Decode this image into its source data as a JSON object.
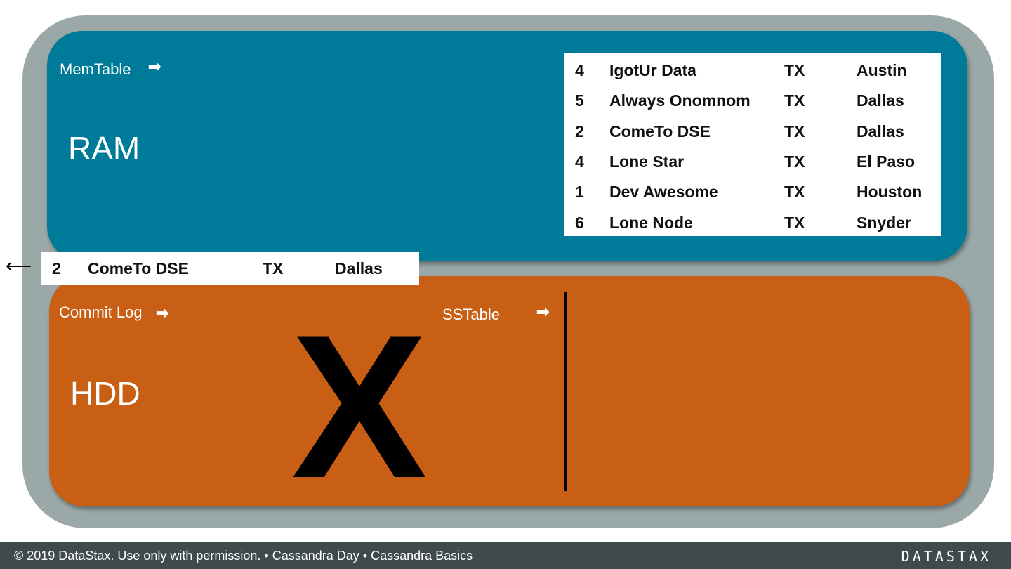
{
  "ram": {
    "label": "MemTable",
    "title": "RAM"
  },
  "hdd": {
    "commit_label": "Commit Log",
    "sstable_label": "SSTable",
    "title": "HDD",
    "mark": "X"
  },
  "memtable_rows": [
    [
      "4",
      "IgotUr Data",
      "TX",
      "Austin"
    ],
    [
      "5",
      "Always Onomnom",
      "TX",
      "Dallas"
    ],
    [
      "2",
      "ComeTo DSE",
      "TX",
      "Dallas"
    ],
    [
      "4",
      "Lone Star",
      "TX",
      "El Paso"
    ],
    [
      "1",
      "Dev Awesome",
      "TX",
      "Houston"
    ],
    [
      "6",
      "Lone Node",
      "TX",
      "Snyder"
    ]
  ],
  "flushing_row": [
    "2",
    "ComeTo DSE",
    "TX",
    "Dallas"
  ],
  "footer": {
    "text": "© 2019 DataStax. Use only with permission. • Cassandra Day • Cassandra Basics",
    "logo": "DATASTAX"
  },
  "colors": {
    "ram": "#007a99",
    "hdd": "#c95f14",
    "outer": "#9aa8a8",
    "footer": "#3e4a4c"
  }
}
